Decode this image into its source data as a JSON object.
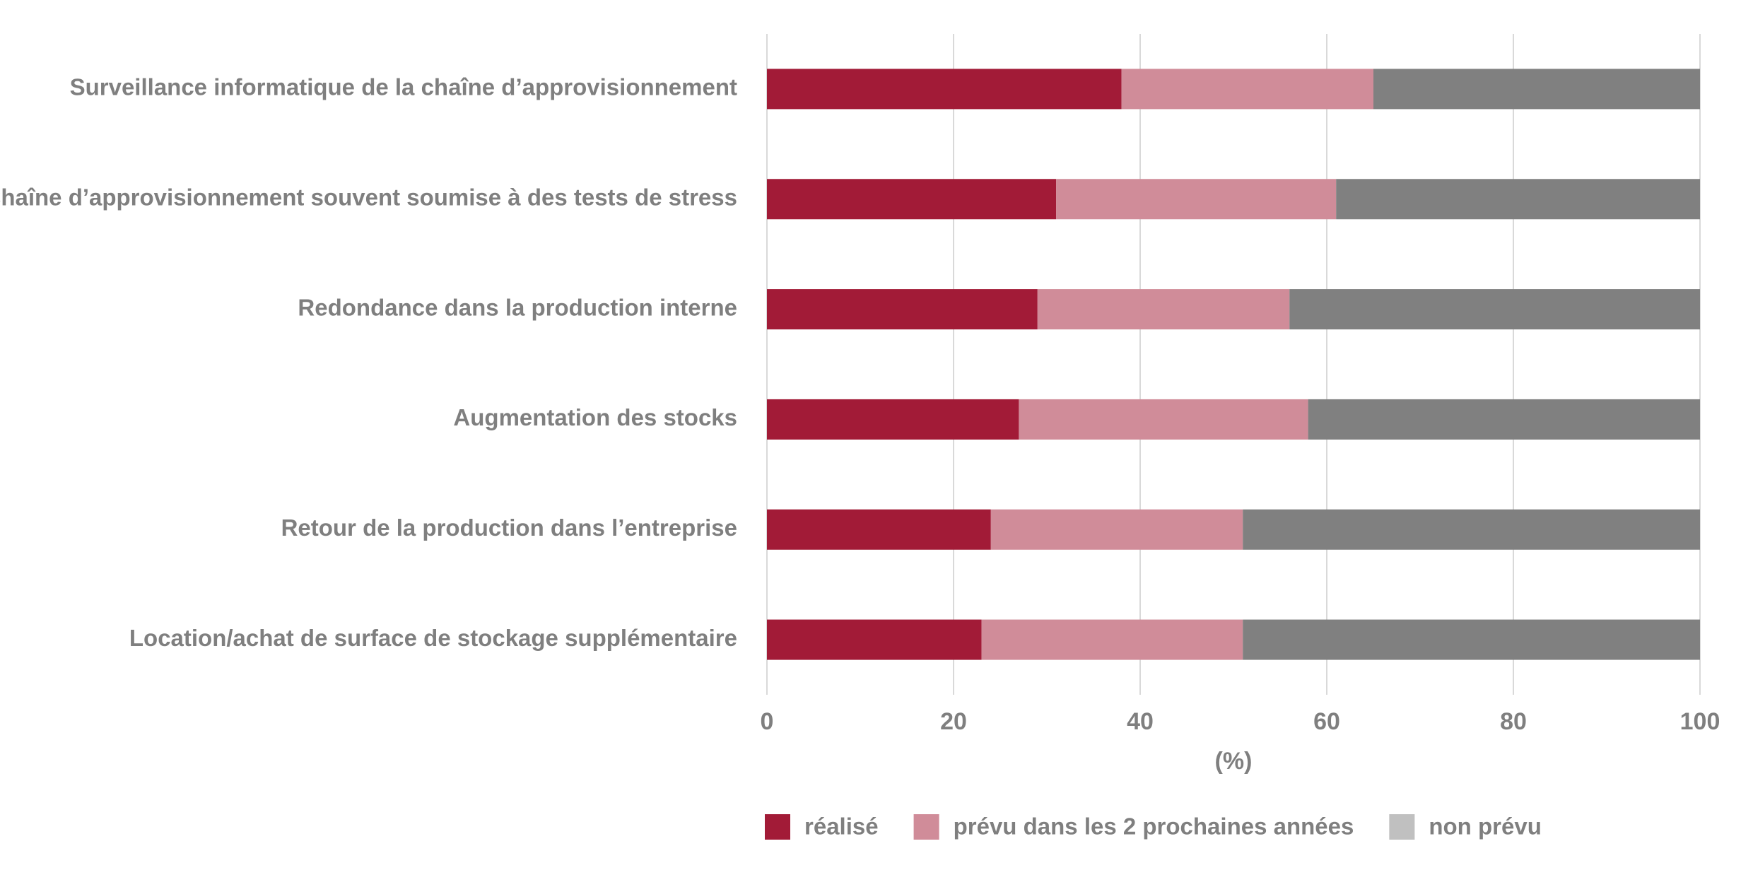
{
  "chart_data": {
    "type": "stacked_barh",
    "categories": [
      "Surveillance informatique de la chaîne d’approvisionnement",
      "Chaîne d’approvisionnement souvent soumise à des tests de stress",
      "Redondance dans la production interne",
      "Augmentation des stocks",
      "Retour de la production dans l’entreprise",
      "Location/achat de surface de stockage supplémentaire"
    ],
    "series": [
      {
        "name": "réalisé",
        "color": "#a21b37",
        "values": [
          38,
          31,
          29,
          27,
          24,
          23
        ]
      },
      {
        "name": "prévu dans les 2 prochaines années",
        "color": "#d08c99",
        "values": [
          27,
          30,
          27,
          31,
          27,
          28
        ]
      },
      {
        "name": "non prévu",
        "color": "#808080",
        "legend_color": "#c0c0c0",
        "values": [
          35,
          39,
          44,
          42,
          49,
          49
        ]
      }
    ],
    "xlabel": "(%)",
    "xlim": [
      0,
      100
    ],
    "xticks": [
      0,
      20,
      40,
      60,
      80,
      100
    ],
    "grid": true,
    "legend": "bottom"
  }
}
